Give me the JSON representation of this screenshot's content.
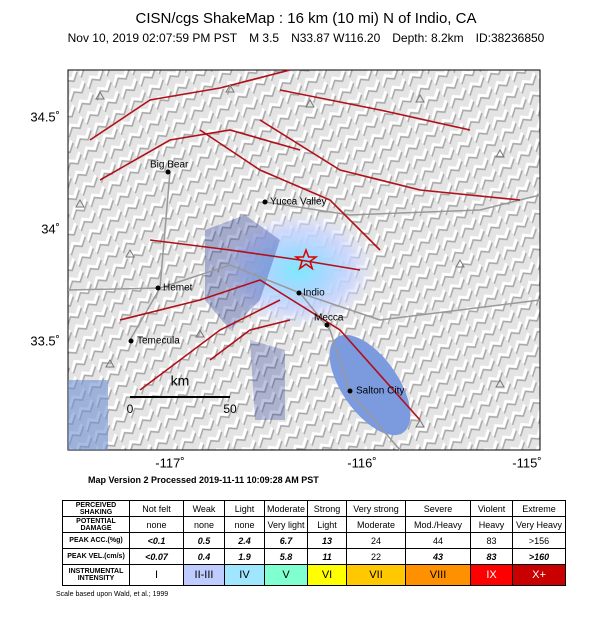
{
  "header": {
    "title": "CISN/cgs ShakeMap : 16 km (10 mi) N of Indio, CA",
    "details": [
      "Nov 10, 2019 02:07:59 PM PST",
      "M 3.5",
      "N33.87 W116.20",
      "Depth: 8.2km",
      "ID:38236850"
    ]
  },
  "map": {
    "lat_labels": [
      "34.5˚",
      "34˚",
      "33.5˚"
    ],
    "lon_labels": [
      "-117˚",
      "-116˚",
      "-115˚"
    ],
    "cities": [
      "Big Bear",
      "Yucca Valley",
      "Hemet",
      "Indio",
      "Mecca",
      "Temecula",
      "Salton City"
    ],
    "scale": {
      "unit": "km",
      "start": "0",
      "end": "50"
    }
  },
  "version": "Map Version 2 Processed 2019-11-11 10:09:28 AM PST",
  "table": {
    "rows": [
      {
        "label": "PERCEIVED SHAKING",
        "cells": [
          "Not felt",
          "Weak",
          "Light",
          "Moderate",
          "Strong",
          "Very strong",
          "Severe",
          "Violent",
          "Extreme"
        ]
      },
      {
        "label": "POTENTIAL DAMAGE",
        "cells": [
          "none",
          "none",
          "none",
          "Very light",
          "Light",
          "Moderate",
          "Mod./Heavy",
          "Heavy",
          "Very Heavy"
        ]
      },
      {
        "label": "PEAK ACC.(%g)",
        "cells": [
          "<0.1",
          "0.5",
          "2.4",
          "6.7",
          "13",
          "24",
          "44",
          "83",
          ">156"
        ]
      },
      {
        "label": "PEAK VEL.(cm/s)",
        "cells": [
          "<0.07",
          "0.4",
          "1.9",
          "5.8",
          "11",
          "22",
          "43",
          "83",
          ">160"
        ]
      },
      {
        "label": "INSTRUMENTAL INTENSITY",
        "cells": [
          "I",
          "II-III",
          "IV",
          "V",
          "VI",
          "VII",
          "VIII",
          "IX",
          "X+"
        ]
      }
    ],
    "intensity_colors": [
      "#ffffff",
      "#bfccff",
      "#a0e6ff",
      "#80ffd0",
      "#ffff00",
      "#ffc800",
      "#ff9100",
      "#ff0000",
      "#c80000"
    ]
  },
  "footnote": "Scale based upon Wald, et al.; 1999"
}
